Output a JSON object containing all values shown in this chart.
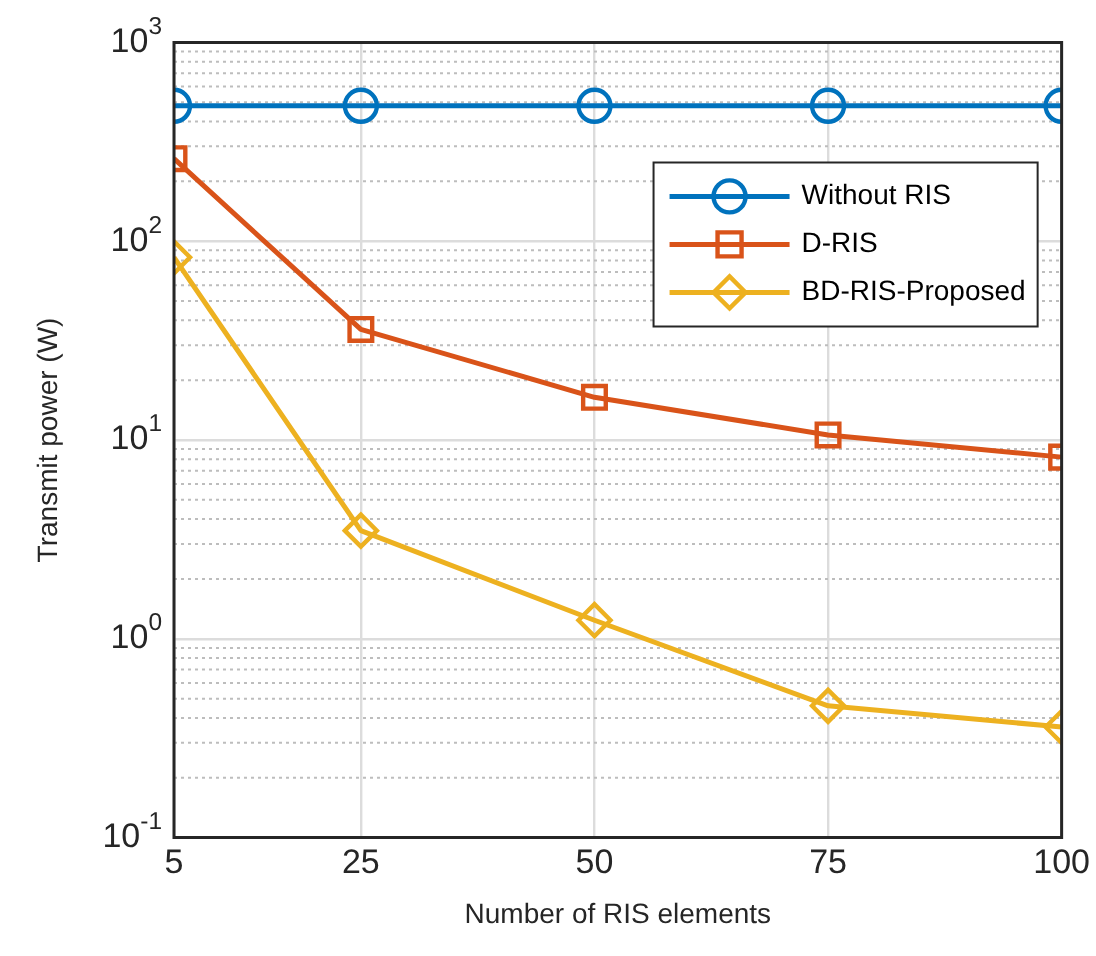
{
  "chart_data": {
    "type": "line",
    "xlabel": "Number of RIS elements",
    "ylabel": "Transmit power (W)",
    "x": [
      5,
      25,
      50,
      75,
      100
    ],
    "series": [
      {
        "name": "Without RIS",
        "color": "#0072bd",
        "marker": "circle",
        "values": [
          480,
          480,
          480,
          480,
          480
        ]
      },
      {
        "name": "D-RIS",
        "color": "#d95319",
        "marker": "square",
        "values": [
          260,
          36,
          16.4,
          10.6,
          8.2
        ]
      },
      {
        "name": "BD-RIS-Proposed",
        "color": "#edb120",
        "marker": "diamond",
        "values": [
          83,
          3.5,
          1.24,
          0.46,
          0.36
        ]
      }
    ],
    "xlim": [
      5,
      100
    ],
    "xticks": [
      5,
      25,
      50,
      75,
      100
    ],
    "ylim": [
      0.1,
      1000
    ],
    "yticks": [
      {
        "value": 0.1,
        "label": "10$^{-1}$"
      },
      {
        "value": 1,
        "label": "10$^{0}$"
      },
      {
        "value": 10,
        "label": "10$^{1}$"
      },
      {
        "value": 100,
        "label": "10$^{2}$"
      },
      {
        "value": 1000,
        "label": "10$^{3}$"
      }
    ],
    "log": "y",
    "grid": true,
    "legend": "top right",
    "line_style": "solid"
  }
}
